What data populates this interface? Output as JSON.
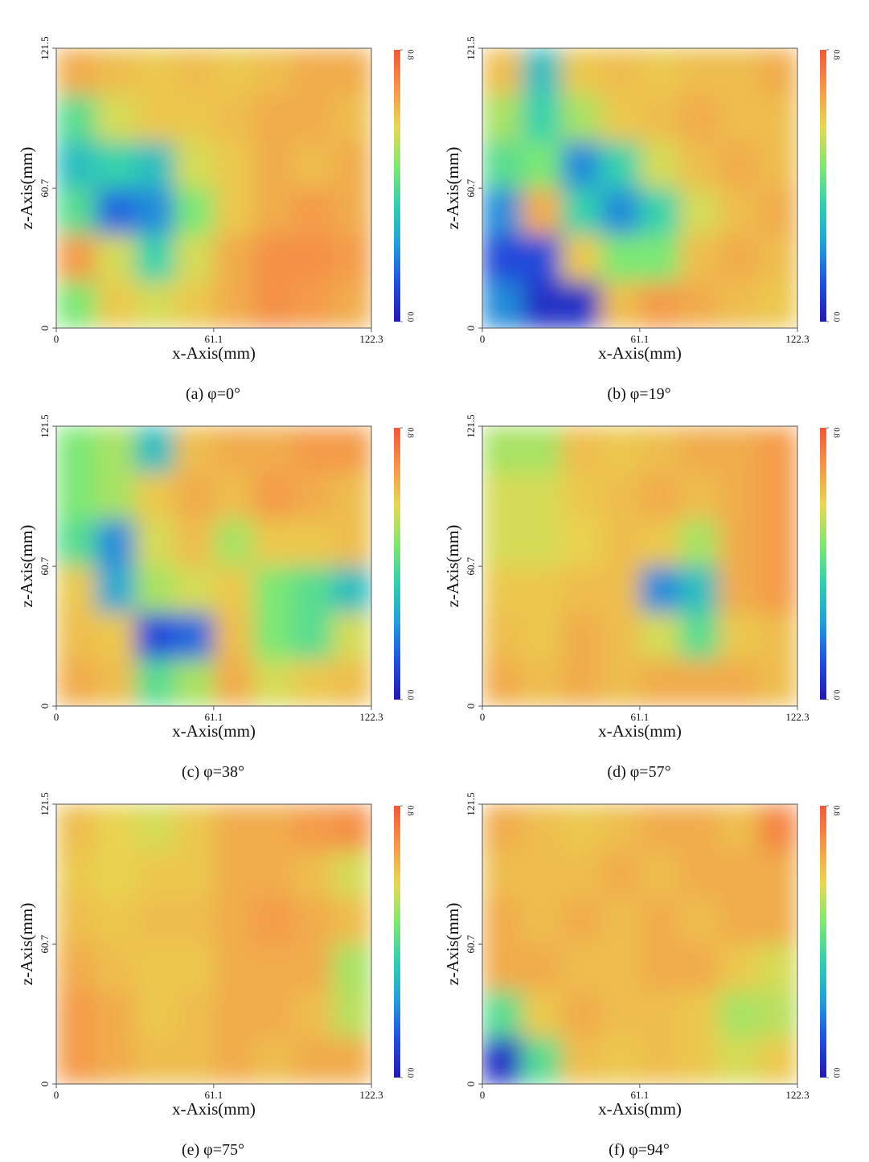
{
  "chart_data": [
    {
      "type": "heatmap",
      "caption": "(a)  φ=0°",
      "xlabel": "x-Axis(mm)",
      "ylabel": "z-Axis(mm)",
      "xlim": [
        0,
        122.3
      ],
      "ylim": [
        0,
        121.5
      ],
      "xticks": [
        0,
        61.1,
        122.3
      ],
      "yticks": [
        0,
        60.7,
        121.5
      ],
      "clim": [
        0,
        0.8
      ],
      "cticks": [
        {
          "value": 0,
          "label": "0.0"
        },
        0.8
      ],
      "colormap": [
        "#2418b0",
        "#2050e0",
        "#20a0d8",
        "#30d0b0",
        "#80e870",
        "#e8d850",
        "#f59848",
        "#f05838"
      ],
      "z": [
        [
          0.65,
          0.62,
          0.6,
          0.62,
          0.6,
          0.62,
          0.65,
          0.65
        ],
        [
          0.4,
          0.55,
          0.6,
          0.6,
          0.62,
          0.65,
          0.65,
          0.62
        ],
        [
          0.3,
          0.35,
          0.3,
          0.55,
          0.6,
          0.65,
          0.62,
          0.65
        ],
        [
          0.4,
          0.15,
          0.2,
          0.45,
          0.6,
          0.65,
          0.68,
          0.65
        ],
        [
          0.68,
          0.55,
          0.35,
          0.55,
          0.65,
          0.7,
          0.7,
          0.68
        ],
        [
          0.45,
          0.6,
          0.55,
          0.6,
          0.65,
          0.7,
          0.68,
          0.65
        ]
      ]
    },
    {
      "type": "heatmap",
      "caption": "(b)  φ=19°",
      "xlabel": "x-Axis(mm)",
      "ylabel": "z-Axis(mm)",
      "xlim": [
        0,
        122.3
      ],
      "ylim": [
        0,
        121.5
      ],
      "xticks": [
        0,
        61.1,
        122.3
      ],
      "yticks": [
        0,
        60.7,
        121.5
      ],
      "clim": [
        0,
        0.8
      ],
      "cticks": [
        {
          "value": 0,
          "label": "0.0"
        },
        0.8
      ],
      "colormap": [
        "#2418b0",
        "#2050e0",
        "#20a0d8",
        "#30d0b0",
        "#80e870",
        "#e8d850",
        "#f59848",
        "#f05838"
      ],
      "z": [
        [
          0.62,
          0.3,
          0.6,
          0.62,
          0.6,
          0.62,
          0.62,
          0.65
        ],
        [
          0.5,
          0.35,
          0.5,
          0.6,
          0.62,
          0.65,
          0.62,
          0.62
        ],
        [
          0.4,
          0.45,
          0.2,
          0.35,
          0.55,
          0.62,
          0.65,
          0.62
        ],
        [
          0.2,
          0.65,
          0.35,
          0.2,
          0.35,
          0.55,
          0.62,
          0.65
        ],
        [
          0.1,
          0.1,
          0.6,
          0.45,
          0.45,
          0.62,
          0.65,
          0.62
        ],
        [
          0.2,
          0.05,
          0.05,
          0.62,
          0.68,
          0.65,
          0.62,
          0.6
        ]
      ]
    },
    {
      "type": "heatmap",
      "caption": "(c)  φ=38°",
      "xlabel": "x-Axis(mm)",
      "ylabel": "z-Axis(mm)",
      "xlim": [
        0,
        122.3
      ],
      "ylim": [
        0,
        121.5
      ],
      "xticks": [
        0,
        61.1,
        122.3
      ],
      "yticks": [
        0,
        60.7,
        121.5
      ],
      "clim": [
        0,
        0.8
      ],
      "cticks": [
        {
          "value": 0,
          "label": "0.0"
        },
        0.8
      ],
      "colormap": [
        "#2418b0",
        "#2050e0",
        "#20a0d8",
        "#30d0b0",
        "#80e870",
        "#e8d850",
        "#f59848",
        "#f05838"
      ],
      "z": [
        [
          0.45,
          0.5,
          0.3,
          0.62,
          0.65,
          0.65,
          0.68,
          0.68
        ],
        [
          0.45,
          0.5,
          0.6,
          0.65,
          0.62,
          0.68,
          0.65,
          0.62
        ],
        [
          0.4,
          0.2,
          0.55,
          0.62,
          0.5,
          0.6,
          0.6,
          0.62
        ],
        [
          0.6,
          0.25,
          0.5,
          0.55,
          0.6,
          0.45,
          0.4,
          0.3
        ],
        [
          0.62,
          0.6,
          0.1,
          0.15,
          0.62,
          0.45,
          0.4,
          0.55
        ],
        [
          0.65,
          0.62,
          0.4,
          0.5,
          0.65,
          0.55,
          0.6,
          0.62
        ]
      ]
    },
    {
      "type": "heatmap",
      "caption": "(d)  φ=57°",
      "xlabel": "x-Axis(mm)",
      "ylabel": "z-Axis(mm)",
      "xlim": [
        0,
        122.3
      ],
      "ylim": [
        0,
        121.5
      ],
      "xticks": [
        0,
        61.1,
        122.3
      ],
      "yticks": [
        0,
        60.7,
        121.5
      ],
      "clim": [
        0,
        0.8
      ],
      "cticks": [
        {
          "value": 0,
          "label": "0.0"
        },
        0.8
      ],
      "colormap": [
        "#2418b0",
        "#2050e0",
        "#20a0d8",
        "#30d0b0",
        "#80e870",
        "#e8d850",
        "#f59848",
        "#f05838"
      ],
      "z": [
        [
          0.5,
          0.5,
          0.62,
          0.6,
          0.62,
          0.65,
          0.65,
          0.68
        ],
        [
          0.55,
          0.55,
          0.6,
          0.62,
          0.65,
          0.62,
          0.65,
          0.68
        ],
        [
          0.55,
          0.55,
          0.58,
          0.62,
          0.6,
          0.5,
          0.65,
          0.68
        ],
        [
          0.6,
          0.6,
          0.62,
          0.62,
          0.2,
          0.3,
          0.65,
          0.68
        ],
        [
          0.62,
          0.6,
          0.65,
          0.62,
          0.55,
          0.4,
          0.6,
          0.62
        ],
        [
          0.65,
          0.62,
          0.65,
          0.62,
          0.65,
          0.65,
          0.65,
          0.62
        ]
      ]
    },
    {
      "type": "heatmap",
      "caption": "(e)  φ=75°",
      "xlabel": "x-Axis(mm)",
      "ylabel": "z-Axis(mm)",
      "xlim": [
        0,
        122.3
      ],
      "ylim": [
        0,
        121.5
      ],
      "xticks": [
        0,
        61.1,
        122.3
      ],
      "yticks": [
        0,
        60.7,
        121.5
      ],
      "clim": [
        0,
        0.8
      ],
      "cticks": [
        {
          "value": 0,
          "label": "0.0"
        },
        0.8
      ],
      "colormap": [
        "#2418b0",
        "#2050e0",
        "#20a0d8",
        "#30d0b0",
        "#80e870",
        "#e8d850",
        "#f59848",
        "#f05838"
      ],
      "z": [
        [
          0.62,
          0.58,
          0.55,
          0.6,
          0.65,
          0.65,
          0.68,
          0.7
        ],
        [
          0.6,
          0.58,
          0.6,
          0.6,
          0.65,
          0.65,
          0.62,
          0.55
        ],
        [
          0.62,
          0.6,
          0.62,
          0.62,
          0.65,
          0.68,
          0.65,
          0.62
        ],
        [
          0.65,
          0.62,
          0.6,
          0.6,
          0.65,
          0.65,
          0.65,
          0.5
        ],
        [
          0.68,
          0.65,
          0.6,
          0.62,
          0.65,
          0.65,
          0.62,
          0.52
        ],
        [
          0.68,
          0.65,
          0.62,
          0.62,
          0.65,
          0.62,
          0.65,
          0.65
        ]
      ]
    },
    {
      "type": "heatmap",
      "caption": "(f)  φ=94°",
      "xlabel": "x-Axis(mm)",
      "ylabel": "z-Axis(mm)",
      "xlim": [
        0,
        122.3
      ],
      "ylim": [
        0,
        121.5
      ],
      "xticks": [
        0,
        61.1,
        122.3
      ],
      "yticks": [
        0,
        60.7,
        121.5
      ],
      "clim": [
        0,
        0.8
      ],
      "cticks": [
        {
          "value": 0,
          "label": "0.0"
        },
        0.8
      ],
      "colormap": [
        "#2418b0",
        "#2050e0",
        "#20a0d8",
        "#30d0b0",
        "#80e870",
        "#e8d850",
        "#f59848",
        "#f05838"
      ],
      "z": [
        [
          0.65,
          0.62,
          0.6,
          0.62,
          0.65,
          0.65,
          0.62,
          0.72
        ],
        [
          0.62,
          0.62,
          0.62,
          0.65,
          0.62,
          0.65,
          0.65,
          0.65
        ],
        [
          0.65,
          0.62,
          0.65,
          0.62,
          0.65,
          0.62,
          0.65,
          0.65
        ],
        [
          0.65,
          0.65,
          0.62,
          0.62,
          0.65,
          0.65,
          0.6,
          0.55
        ],
        [
          0.4,
          0.6,
          0.65,
          0.62,
          0.62,
          0.6,
          0.5,
          0.52
        ],
        [
          0.05,
          0.4,
          0.62,
          0.6,
          0.62,
          0.6,
          0.55,
          0.6
        ]
      ]
    }
  ]
}
